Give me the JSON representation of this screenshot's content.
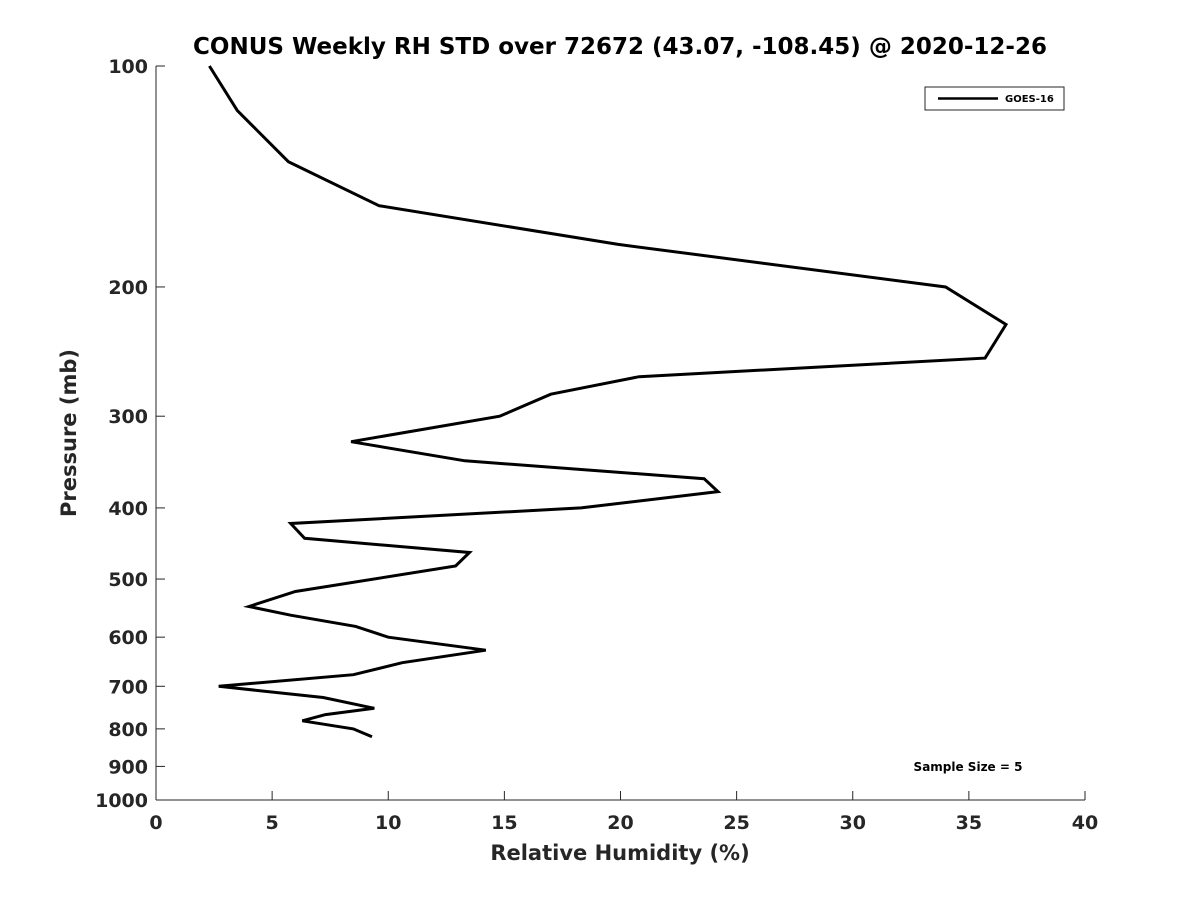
{
  "chart_data": {
    "type": "line",
    "title": "CONUS Weekly RH STD over 72672 (43.07, -108.45) @ 2020-12-26",
    "xlabel": "Relative Humidity (%)",
    "ylabel": "Pressure (mb)",
    "xlim": [
      0,
      40
    ],
    "ylim": [
      100,
      1000
    ],
    "yscale": "log",
    "y_reversed": true,
    "grid": false,
    "xticks": [
      0,
      5,
      10,
      15,
      20,
      25,
      30,
      35,
      40
    ],
    "xtick_labels": [
      "0",
      "5",
      "10",
      "15",
      "20",
      "25",
      "30",
      "35",
      "40"
    ],
    "yticks": [
      100,
      200,
      300,
      400,
      500,
      600,
      700,
      800,
      900,
      1000
    ],
    "ytick_labels": [
      "100",
      "200",
      "300",
      "400",
      "500",
      "600",
      "700",
      "800",
      "900",
      "1000"
    ],
    "legend": {
      "location": "top-right",
      "entries": [
        "GOES-16"
      ]
    },
    "annotation": "Sample Size = 5",
    "series": [
      {
        "name": "GOES-16",
        "color": "#000000",
        "x": [
          2.3,
          3.5,
          5.7,
          9.6,
          19.9,
          34.0,
          36.6,
          35.7,
          20.8,
          17.0,
          14.8,
          8.4,
          13.3,
          23.6,
          24.2,
          18.3,
          5.8,
          6.4,
          13.5,
          12.9,
          6.0,
          4.0,
          5.8,
          8.6,
          10.0,
          14.2,
          10.6,
          8.5,
          2.7,
          7.2,
          9.4,
          7.3,
          6.3,
          8.5,
          9.3
        ],
        "y": [
          100,
          115,
          135,
          155,
          175,
          200,
          225,
          250,
          265,
          280,
          300,
          325,
          345,
          365,
          380,
          400,
          420,
          440,
          460,
          480,
          520,
          545,
          560,
          580,
          600,
          625,
          650,
          675,
          700,
          725,
          750,
          765,
          780,
          800,
          820
        ]
      }
    ]
  }
}
